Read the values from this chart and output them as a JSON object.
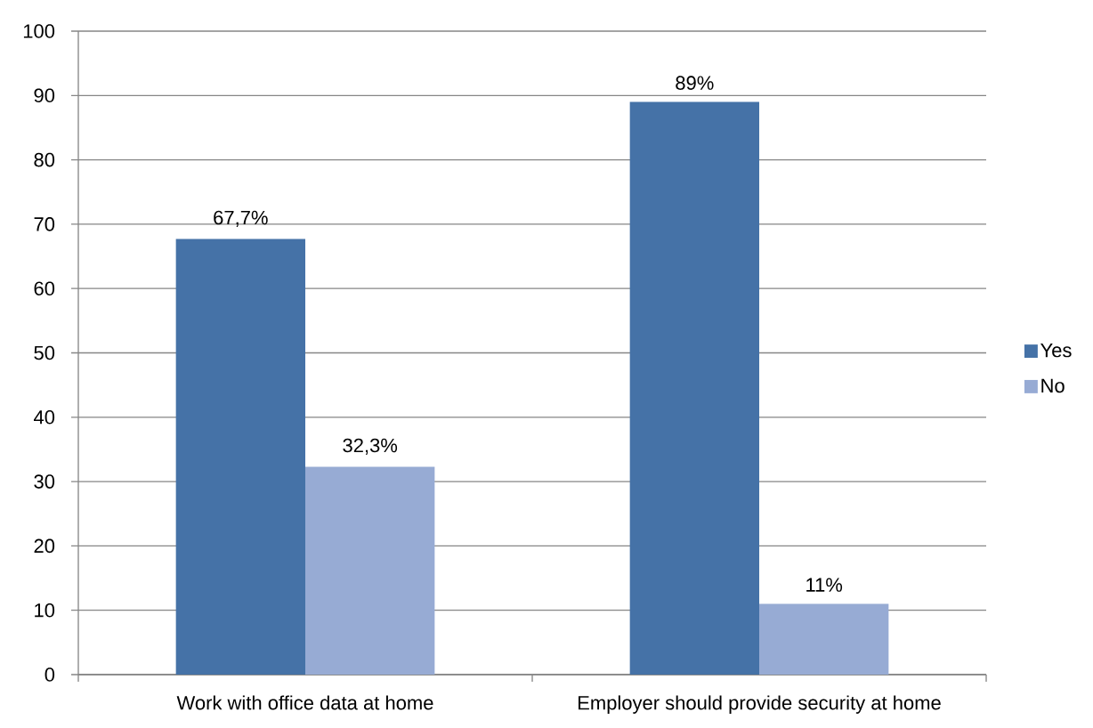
{
  "chart_data": {
    "type": "bar",
    "categories": [
      "Work with office data at home",
      "Employer should provide security at home"
    ],
    "series": [
      {
        "name": "Yes",
        "color": "#4572a7",
        "values": [
          67.7,
          89
        ],
        "value_labels": [
          "67,7%",
          "89%"
        ]
      },
      {
        "name": "No",
        "color": "#97abd4",
        "values": [
          32.3,
          11
        ],
        "value_labels": [
          "32,3%",
          "11%"
        ]
      }
    ],
    "ylim": [
      0,
      100
    ],
    "yticks": [
      0,
      10,
      20,
      30,
      40,
      50,
      60,
      70,
      80,
      90,
      100
    ],
    "grid": "y",
    "legend": "right"
  }
}
